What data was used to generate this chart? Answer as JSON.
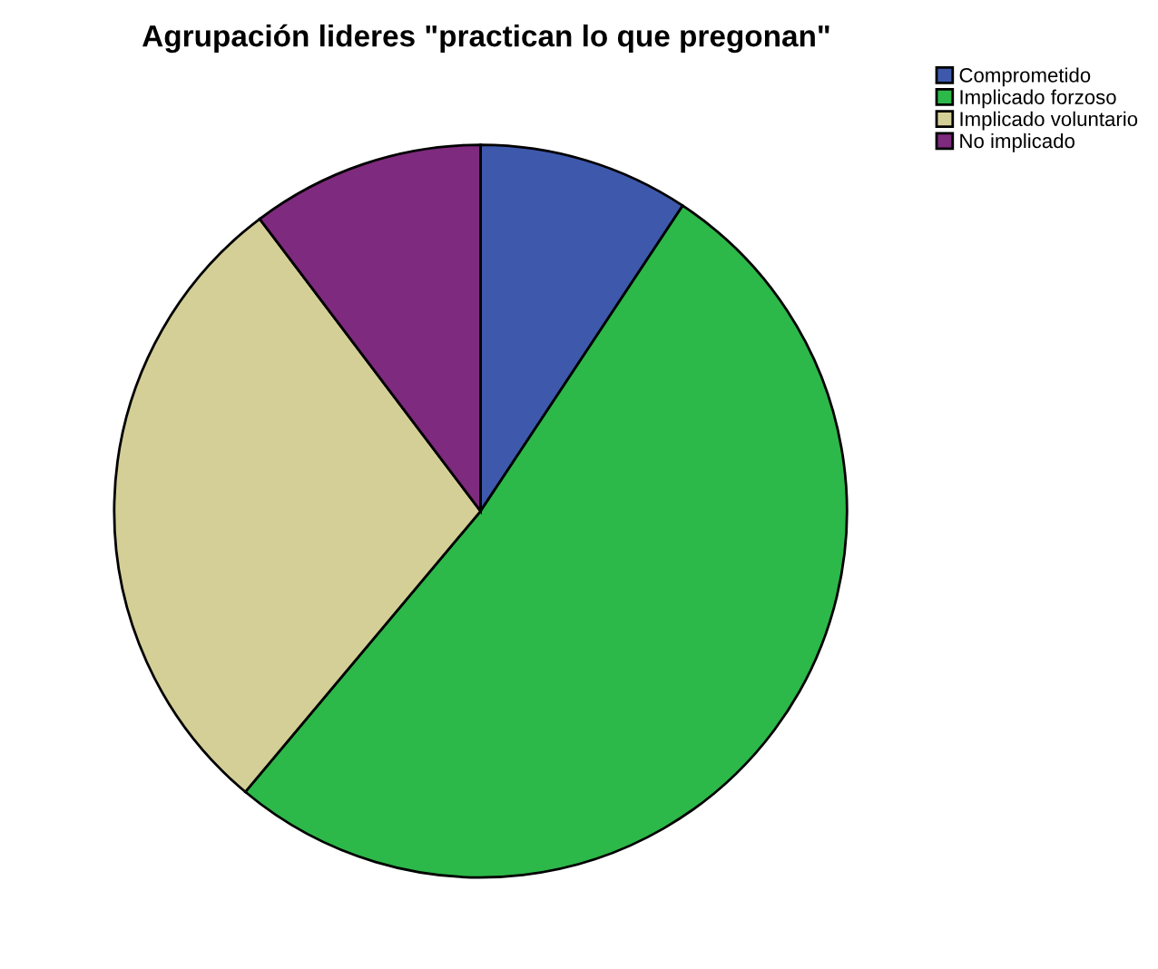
{
  "chart_data": {
    "type": "pie",
    "title": "Agrupación lideres \"practican lo que pregonan\"",
    "categories": [
      "Comprometido",
      "Implicado forzoso",
      "Implicado voluntario",
      "No implicado"
    ],
    "values": [
      9.3,
      51.8,
      28.6,
      10.3
    ],
    "colors": [
      "#3e58ac",
      "#2db84a",
      "#d4cf97",
      "#7e2a7e"
    ],
    "legend": "top right"
  }
}
